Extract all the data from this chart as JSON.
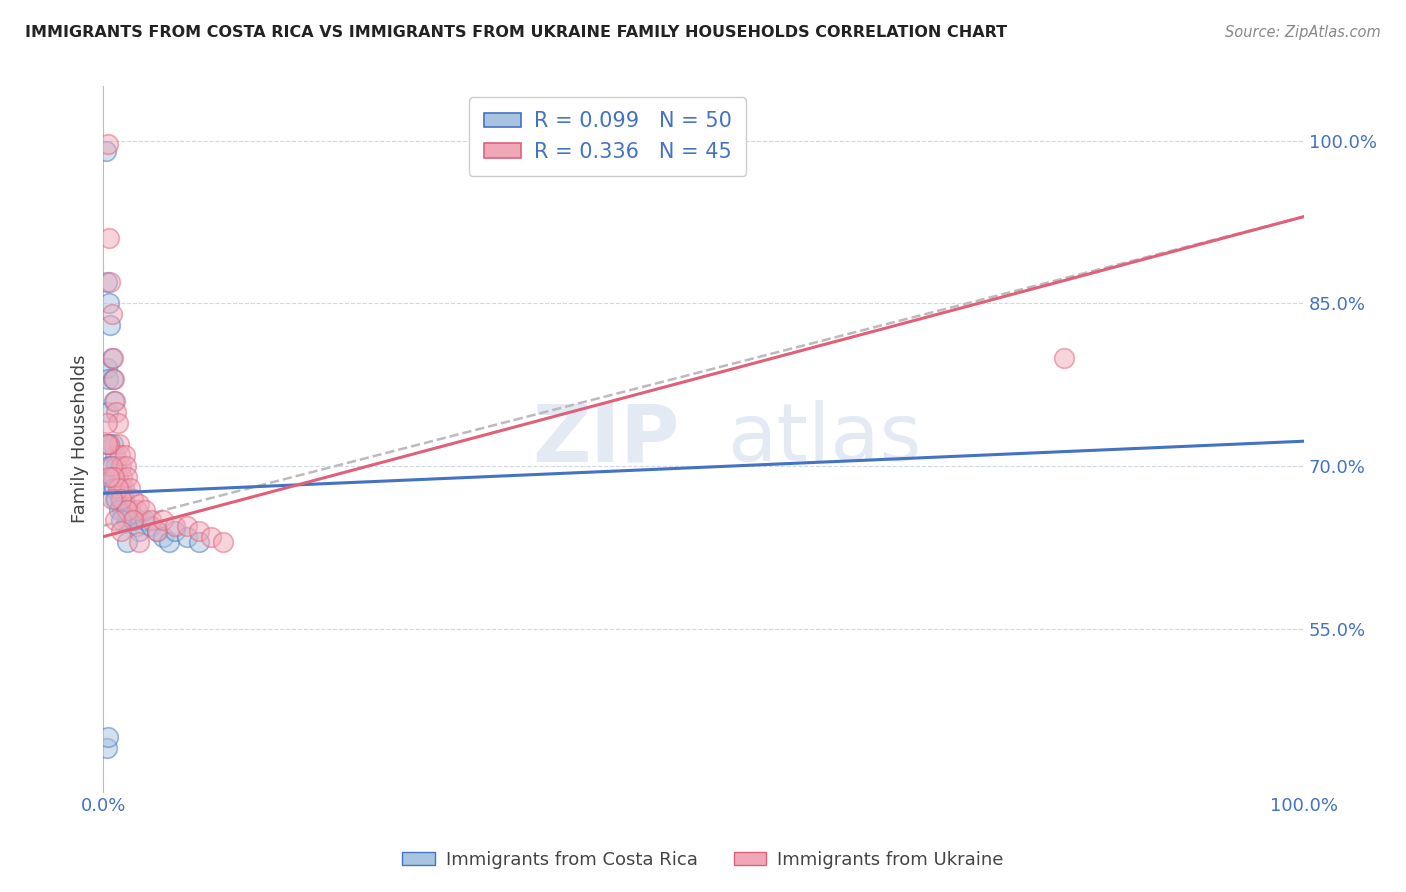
{
  "title": "IMMIGRANTS FROM COSTA RICA VS IMMIGRANTS FROM UKRAINE FAMILY HOUSEHOLDS CORRELATION CHART",
  "source": "Source: ZipAtlas.com",
  "ylabel": "Family Households",
  "legend_label1": "R = 0.099   N = 50",
  "legend_label2": "R = 0.336   N = 45",
  "color_blue": "#a8c4e0",
  "color_pink": "#f0a8b8",
  "color_line_blue": "#4472c4",
  "color_line_pink": "#e0607a",
  "color_dashed": "#bbbbbb",
  "watermark_zip": "ZIP",
  "watermark_atlas": "atlas",
  "ytick_labels": [
    "55.0%",
    "70.0%",
    "85.0%",
    "100.0%"
  ],
  "ytick_values": [
    0.55,
    0.7,
    0.85,
    1.0
  ],
  "xlim": [
    0.0,
    1.0
  ],
  "ylim": [
    0.4,
    1.05
  ],
  "blue_intercept": 0.675,
  "blue_slope": 0.048,
  "pink_intercept": 0.635,
  "pink_slope": 0.295,
  "dashed_intercept": 0.645,
  "dashed_slope": 0.285,
  "blue_x": [
    0.002,
    0.003,
    0.003,
    0.004,
    0.004,
    0.005,
    0.005,
    0.006,
    0.006,
    0.007,
    0.007,
    0.008,
    0.008,
    0.009,
    0.009,
    0.01,
    0.01,
    0.011,
    0.012,
    0.013,
    0.014,
    0.015,
    0.016,
    0.017,
    0.018,
    0.019,
    0.02,
    0.022,
    0.024,
    0.026,
    0.028,
    0.03,
    0.035,
    0.04,
    0.045,
    0.05,
    0.055,
    0.06,
    0.07,
    0.08,
    0.003,
    0.005,
    0.007,
    0.009,
    0.011,
    0.013,
    0.015,
    0.02,
    0.003,
    0.004
  ],
  "blue_y": [
    0.99,
    0.87,
    0.79,
    0.78,
    0.75,
    0.85,
    0.72,
    0.83,
    0.7,
    0.8,
    0.69,
    0.78,
    0.72,
    0.76,
    0.68,
    0.71,
    0.67,
    0.7,
    0.69,
    0.68,
    0.67,
    0.68,
    0.66,
    0.67,
    0.665,
    0.66,
    0.65,
    0.66,
    0.655,
    0.65,
    0.645,
    0.64,
    0.65,
    0.645,
    0.64,
    0.635,
    0.63,
    0.64,
    0.635,
    0.63,
    0.72,
    0.7,
    0.69,
    0.68,
    0.67,
    0.66,
    0.65,
    0.63,
    0.44,
    0.45
  ],
  "pink_x": [
    0.004,
    0.005,
    0.006,
    0.007,
    0.008,
    0.009,
    0.01,
    0.011,
    0.012,
    0.013,
    0.014,
    0.015,
    0.016,
    0.017,
    0.018,
    0.019,
    0.02,
    0.022,
    0.025,
    0.028,
    0.03,
    0.035,
    0.04,
    0.045,
    0.05,
    0.06,
    0.07,
    0.08,
    0.09,
    0.1,
    0.003,
    0.005,
    0.007,
    0.009,
    0.012,
    0.015,
    0.02,
    0.025,
    0.003,
    0.005,
    0.007,
    0.01,
    0.015,
    0.03,
    0.8
  ],
  "pink_y": [
    0.997,
    0.91,
    0.87,
    0.84,
    0.8,
    0.78,
    0.76,
    0.75,
    0.74,
    0.72,
    0.71,
    0.7,
    0.69,
    0.68,
    0.71,
    0.7,
    0.69,
    0.68,
    0.67,
    0.66,
    0.665,
    0.66,
    0.65,
    0.64,
    0.65,
    0.645,
    0.645,
    0.64,
    0.635,
    0.63,
    0.74,
    0.72,
    0.7,
    0.69,
    0.68,
    0.67,
    0.66,
    0.65,
    0.72,
    0.69,
    0.67,
    0.65,
    0.64,
    0.63,
    0.8
  ]
}
